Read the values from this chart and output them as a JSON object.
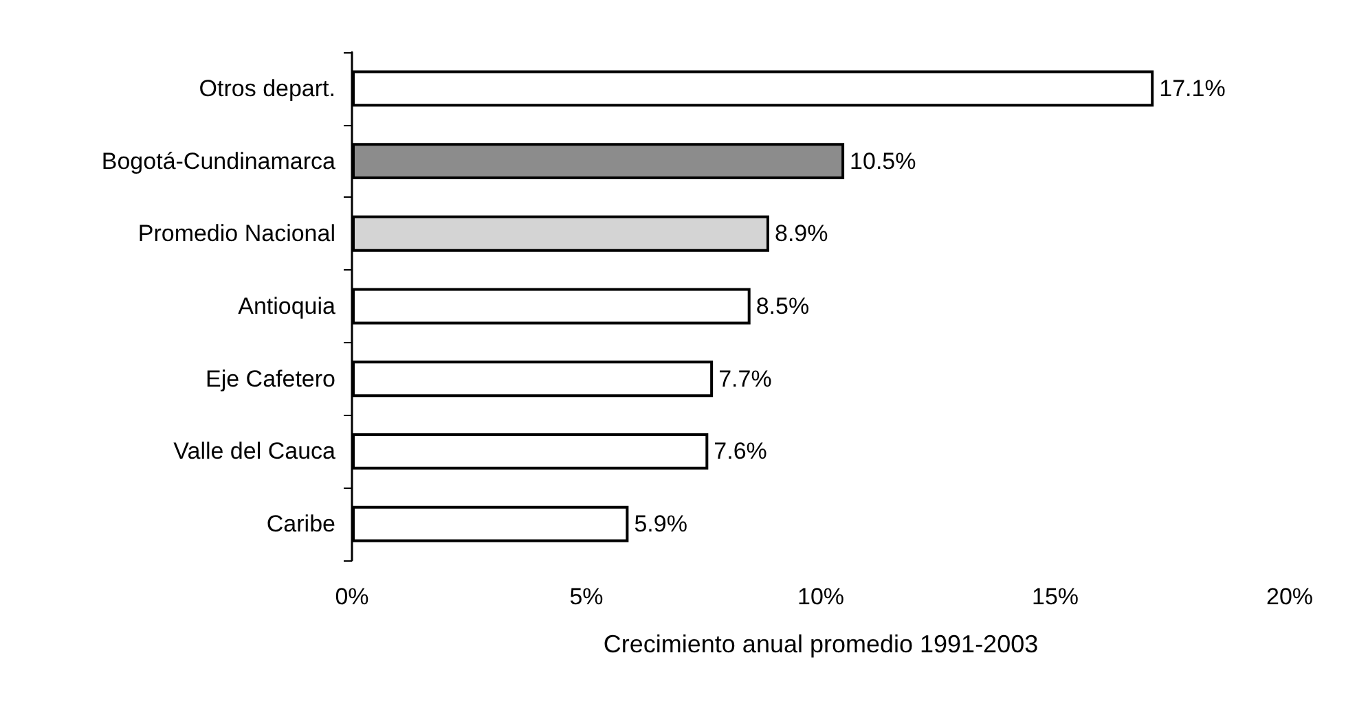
{
  "chart_data": {
    "type": "bar",
    "orientation": "horizontal",
    "xlabel": "Crecimiento anual promedio 1991-2003",
    "categories": [
      "Otros depart.",
      "Bogotá-Cundinamarca",
      "Promedio Nacional",
      "Antioquia",
      "Eje Cafetero",
      "Valle del Cauca",
      "Caribe"
    ],
    "values": [
      17.1,
      10.5,
      8.9,
      8.5,
      7.7,
      7.6,
      5.9
    ],
    "value_labels": [
      "17.1%",
      "10.5%",
      "8.9%",
      "8.5%",
      "7.7%",
      "7.6%",
      "5.9%"
    ],
    "colors": [
      "#ffffff",
      "#8c8c8c",
      "#d4d4d4",
      "#ffffff",
      "#ffffff",
      "#ffffff",
      "#ffffff"
    ],
    "xlim": [
      0,
      20
    ],
    "xticks": [
      {
        "value": 0,
        "label": "0%"
      },
      {
        "value": 5,
        "label": "5%"
      },
      {
        "value": 10,
        "label": "10%"
      },
      {
        "value": 15,
        "label": "15%"
      },
      {
        "value": 20,
        "label": "20%"
      }
    ],
    "grid": false
  }
}
